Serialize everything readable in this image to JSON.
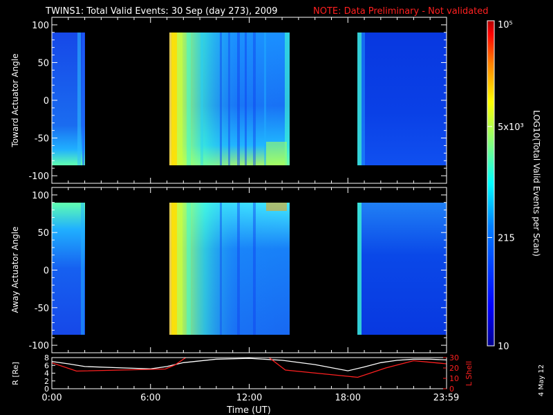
{
  "title": "TWINS1: Total Valid Events: 30 Sep (day 273), 2009",
  "note": "NOTE: Data Preliminary - Not validated",
  "date_stamp": "4 May 12",
  "chart_data": [
    {
      "type": "heatmap",
      "name": "toward",
      "ylabel": "Toward Actuator Angle",
      "ylim": [
        -110,
        110
      ],
      "yticks": [
        -100,
        -50,
        0,
        50,
        100
      ],
      "xlim_hours": [
        0,
        24
      ],
      "data_blocks_hours": [
        [
          0.0,
          1.5
        ],
        [
          7.15,
          14.1
        ],
        [
          18.4,
          24.0
        ]
      ]
    },
    {
      "type": "heatmap",
      "name": "away",
      "ylabel": "Away Actuator Angle",
      "ylim": [
        -110,
        110
      ],
      "yticks": [
        -100,
        -50,
        0,
        50,
        100
      ],
      "xlim_hours": [
        0,
        24
      ],
      "data_blocks_hours": [
        [
          0.0,
          1.5
        ],
        [
          7.15,
          14.1
        ],
        [
          18.4,
          24.0
        ]
      ]
    },
    {
      "type": "line",
      "name": "orbit",
      "ylabel": "R [Re]",
      "y2label": "L Shell",
      "ylim": [
        0,
        8
      ],
      "yticks": [
        "0",
        "2",
        "4",
        "6",
        "8"
      ],
      "y2lim": [
        0,
        30
      ],
      "y2ticks": [
        "0",
        "10",
        "20",
        "30"
      ],
      "xlabel": "Time (UT)",
      "xticks": [
        {
          "hour": 0,
          "label": "0:00"
        },
        {
          "hour": 6,
          "label": "6:00"
        },
        {
          "hour": 12,
          "label": "12:00"
        },
        {
          "hour": 18,
          "label": "18:00"
        },
        {
          "hour": 23.98,
          "label": "23:59"
        }
      ],
      "series": [
        {
          "color": "#ffffff",
          "x": [
            0,
            1,
            2,
            4,
            6,
            7,
            8,
            10,
            12,
            14,
            16,
            18,
            19,
            20,
            21,
            22,
            23,
            24
          ],
          "values": [
            7.0,
            6.4,
            5.7,
            5.4,
            5.1,
            5.7,
            6.7,
            7.6,
            7.8,
            7.3,
            6.2,
            4.6,
            5.6,
            6.7,
            7.3,
            7.6,
            7.6,
            7.4
          ]
        },
        {
          "color": "#ff2020",
          "x": [
            0,
            1.5,
            6.9,
            7.5,
            8.6,
            12.8,
            14.2,
            18.6,
            20.3,
            22.0,
            24
          ],
          "values": [
            25,
            17,
            19,
            23,
            35,
            35,
            18,
            11,
            20,
            27,
            24
          ]
        }
      ]
    }
  ],
  "colorbar": {
    "label": "LOG10(Total Valid Events per Scan)",
    "tick_labels": [
      "10⁵",
      "5x10³",
      "215",
      "10"
    ],
    "tick_values": [
      100000,
      5000,
      215,
      10
    ],
    "range": [
      10,
      100000
    ],
    "scale": "log",
    "colors": [
      "#00008f",
      "#0000ff",
      "#0080ff",
      "#00ffff",
      "#80ff80",
      "#ffff00",
      "#ff8000",
      "#ff0000",
      "#800000"
    ]
  }
}
